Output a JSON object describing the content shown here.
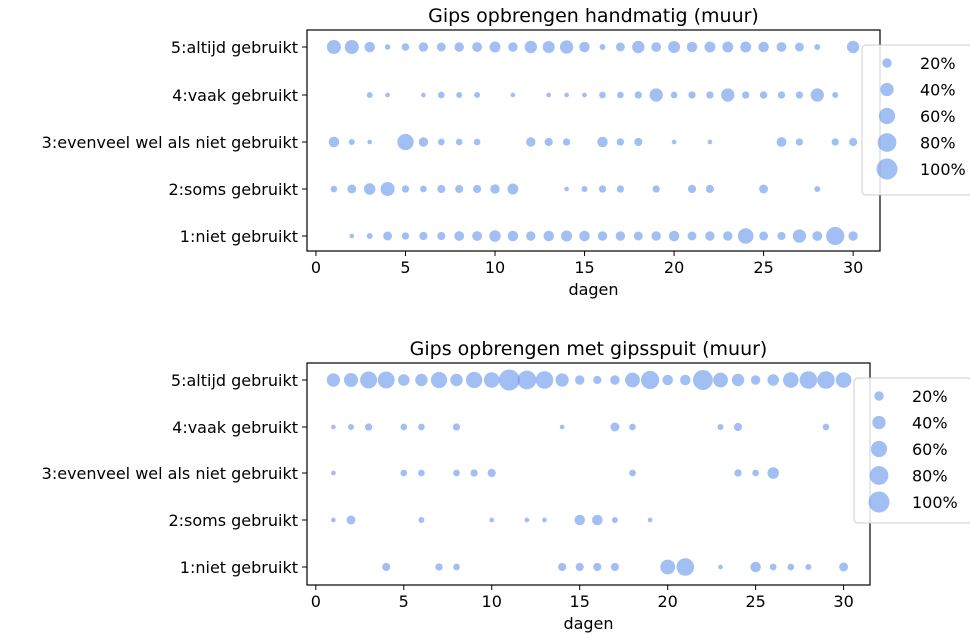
{
  "chart_data": [
    {
      "type": "scatter",
      "title": "Gips opbrengen handmatig (muur)",
      "xlabel": "dagen",
      "ylabel": "",
      "xlim": [
        -0.5,
        31.5
      ],
      "xticks": [
        0,
        5,
        10,
        15,
        20,
        25,
        30
      ],
      "categories": [
        "1:niet gebruikt",
        "2:soms gebruikt",
        "3:evenveel wel als niet gebruikt",
        "4:vaak gebruikt",
        "5:altijd gebruikt"
      ],
      "size_legend": {
        "position": "right",
        "labels": [
          "20%",
          "40%",
          "60%",
          "80%",
          "100%"
        ],
        "values": [
          20,
          40,
          60,
          80,
          100
        ]
      },
      "color": "#6495ed",
      "points": {
        "5": [
          [
            1,
            45
          ],
          [
            2,
            45
          ],
          [
            3,
            25
          ],
          [
            4,
            7
          ],
          [
            5,
            13
          ],
          [
            6,
            20
          ],
          [
            7,
            18
          ],
          [
            8,
            20
          ],
          [
            9,
            22
          ],
          [
            10,
            27
          ],
          [
            11,
            20
          ],
          [
            12,
            35
          ],
          [
            13,
            33
          ],
          [
            14,
            40
          ],
          [
            15,
            25
          ],
          [
            16,
            8
          ],
          [
            17,
            18
          ],
          [
            18,
            35
          ],
          [
            19,
            22
          ],
          [
            20,
            33
          ],
          [
            21,
            25
          ],
          [
            22,
            27
          ],
          [
            23,
            27
          ],
          [
            24,
            27
          ],
          [
            25,
            25
          ],
          [
            26,
            22
          ],
          [
            27,
            18
          ],
          [
            28,
            8
          ],
          [
            30,
            35
          ]
        ],
        "4": [
          [
            3,
            8
          ],
          [
            4,
            5
          ],
          [
            6,
            5
          ],
          [
            7,
            10
          ],
          [
            8,
            8
          ],
          [
            9,
            8
          ],
          [
            11,
            5
          ],
          [
            13,
            5
          ],
          [
            14,
            5
          ],
          [
            15,
            5
          ],
          [
            16,
            10
          ],
          [
            17,
            10
          ],
          [
            18,
            12
          ],
          [
            19,
            40
          ],
          [
            20,
            10
          ],
          [
            21,
            12
          ],
          [
            22,
            12
          ],
          [
            23,
            40
          ],
          [
            24,
            12
          ],
          [
            25,
            13
          ],
          [
            26,
            12
          ],
          [
            27,
            12
          ],
          [
            28,
            40
          ],
          [
            29,
            8
          ]
        ],
        "3": [
          [
            1,
            25
          ],
          [
            2,
            8
          ],
          [
            3,
            5
          ],
          [
            5,
            60
          ],
          [
            6,
            20
          ],
          [
            7,
            10
          ],
          [
            8,
            10
          ],
          [
            9,
            10
          ],
          [
            12,
            20
          ],
          [
            13,
            15
          ],
          [
            14,
            12
          ],
          [
            16,
            25
          ],
          [
            17,
            12
          ],
          [
            18,
            15
          ],
          [
            20,
            5
          ],
          [
            22,
            5
          ],
          [
            26,
            22
          ],
          [
            27,
            12
          ],
          [
            29,
            12
          ],
          [
            30,
            15
          ]
        ],
        "2": [
          [
            1,
            10
          ],
          [
            2,
            18
          ],
          [
            3,
            30
          ],
          [
            4,
            45
          ],
          [
            5,
            12
          ],
          [
            6,
            10
          ],
          [
            7,
            15
          ],
          [
            8,
            15
          ],
          [
            9,
            15
          ],
          [
            10,
            20
          ],
          [
            11,
            27
          ],
          [
            14,
            5
          ],
          [
            15,
            8
          ],
          [
            16,
            12
          ],
          [
            17,
            12
          ],
          [
            19,
            12
          ],
          [
            21,
            15
          ],
          [
            22,
            15
          ],
          [
            25,
            18
          ],
          [
            28,
            8
          ]
        ],
        "1": [
          [
            2,
            5
          ],
          [
            3,
            8
          ],
          [
            4,
            18
          ],
          [
            5,
            12
          ],
          [
            6,
            15
          ],
          [
            7,
            15
          ],
          [
            8,
            22
          ],
          [
            9,
            22
          ],
          [
            10,
            30
          ],
          [
            11,
            25
          ],
          [
            12,
            20
          ],
          [
            13,
            25
          ],
          [
            14,
            28
          ],
          [
            15,
            25
          ],
          [
            16,
            20
          ],
          [
            17,
            20
          ],
          [
            18,
            18
          ],
          [
            19,
            20
          ],
          [
            20,
            25
          ],
          [
            21,
            18
          ],
          [
            22,
            20
          ],
          [
            23,
            20
          ],
          [
            24,
            55
          ],
          [
            25,
            18
          ],
          [
            26,
            15
          ],
          [
            27,
            40
          ],
          [
            28,
            22
          ],
          [
            29,
            75
          ],
          [
            30,
            20
          ]
        ]
      }
    },
    {
      "type": "scatter",
      "title": "Gips opbrengen met gipsspuit (muur)",
      "xlabel": "dagen",
      "ylabel": "",
      "xlim": [
        -0.5,
        31.5
      ],
      "xticks": [
        0,
        5,
        10,
        15,
        20,
        25,
        30
      ],
      "categories": [
        "1:niet gebruikt",
        "2:soms gebruikt",
        "3:evenveel wel als niet gebruikt",
        "4:vaak gebruikt",
        "5:altijd gebruikt"
      ],
      "size_legend": {
        "position": "right",
        "labels": [
          "20%",
          "40%",
          "60%",
          "80%",
          "100%"
        ],
        "values": [
          20,
          40,
          60,
          80,
          100
        ]
      },
      "color": "#6495ed",
      "points": {
        "5": [
          [
            1,
            40
          ],
          [
            2,
            45
          ],
          [
            3,
            65
          ],
          [
            4,
            65
          ],
          [
            5,
            30
          ],
          [
            6,
            35
          ],
          [
            7,
            60
          ],
          [
            8,
            35
          ],
          [
            9,
            60
          ],
          [
            10,
            55
          ],
          [
            11,
            100
          ],
          [
            12,
            80
          ],
          [
            13,
            70
          ],
          [
            14,
            40
          ],
          [
            15,
            20
          ],
          [
            16,
            15
          ],
          [
            17,
            20
          ],
          [
            18,
            50
          ],
          [
            19,
            75
          ],
          [
            20,
            25
          ],
          [
            21,
            25
          ],
          [
            22,
            90
          ],
          [
            23,
            50
          ],
          [
            24,
            35
          ],
          [
            25,
            20
          ],
          [
            26,
            30
          ],
          [
            27,
            55
          ],
          [
            28,
            70
          ],
          [
            29,
            70
          ],
          [
            30,
            55
          ]
        ],
        "4": [
          [
            1,
            5
          ],
          [
            2,
            8
          ],
          [
            3,
            12
          ],
          [
            5,
            10
          ],
          [
            6,
            10
          ],
          [
            8,
            12
          ],
          [
            14,
            5
          ],
          [
            17,
            18
          ],
          [
            18,
            10
          ],
          [
            23,
            8
          ],
          [
            24,
            15
          ],
          [
            29,
            10
          ]
        ],
        "3": [
          [
            1,
            5
          ],
          [
            5,
            10
          ],
          [
            6,
            10
          ],
          [
            8,
            10
          ],
          [
            9,
            12
          ],
          [
            10,
            15
          ],
          [
            18,
            10
          ],
          [
            24,
            12
          ],
          [
            25,
            10
          ],
          [
            26,
            30
          ]
        ],
        "2": [
          [
            1,
            5
          ],
          [
            2,
            18
          ],
          [
            6,
            8
          ],
          [
            10,
            5
          ],
          [
            12,
            5
          ],
          [
            13,
            5
          ],
          [
            15,
            25
          ],
          [
            16,
            25
          ],
          [
            17,
            8
          ],
          [
            19,
            5
          ]
        ],
        "1": [
          [
            4,
            15
          ],
          [
            7,
            12
          ],
          [
            8,
            10
          ],
          [
            14,
            15
          ],
          [
            15,
            15
          ],
          [
            16,
            15
          ],
          [
            17,
            15
          ],
          [
            20,
            50
          ],
          [
            21,
            70
          ],
          [
            23,
            5
          ],
          [
            25,
            25
          ],
          [
            26,
            10
          ],
          [
            27,
            10
          ],
          [
            28,
            8
          ],
          [
            30,
            18
          ]
        ]
      }
    }
  ]
}
